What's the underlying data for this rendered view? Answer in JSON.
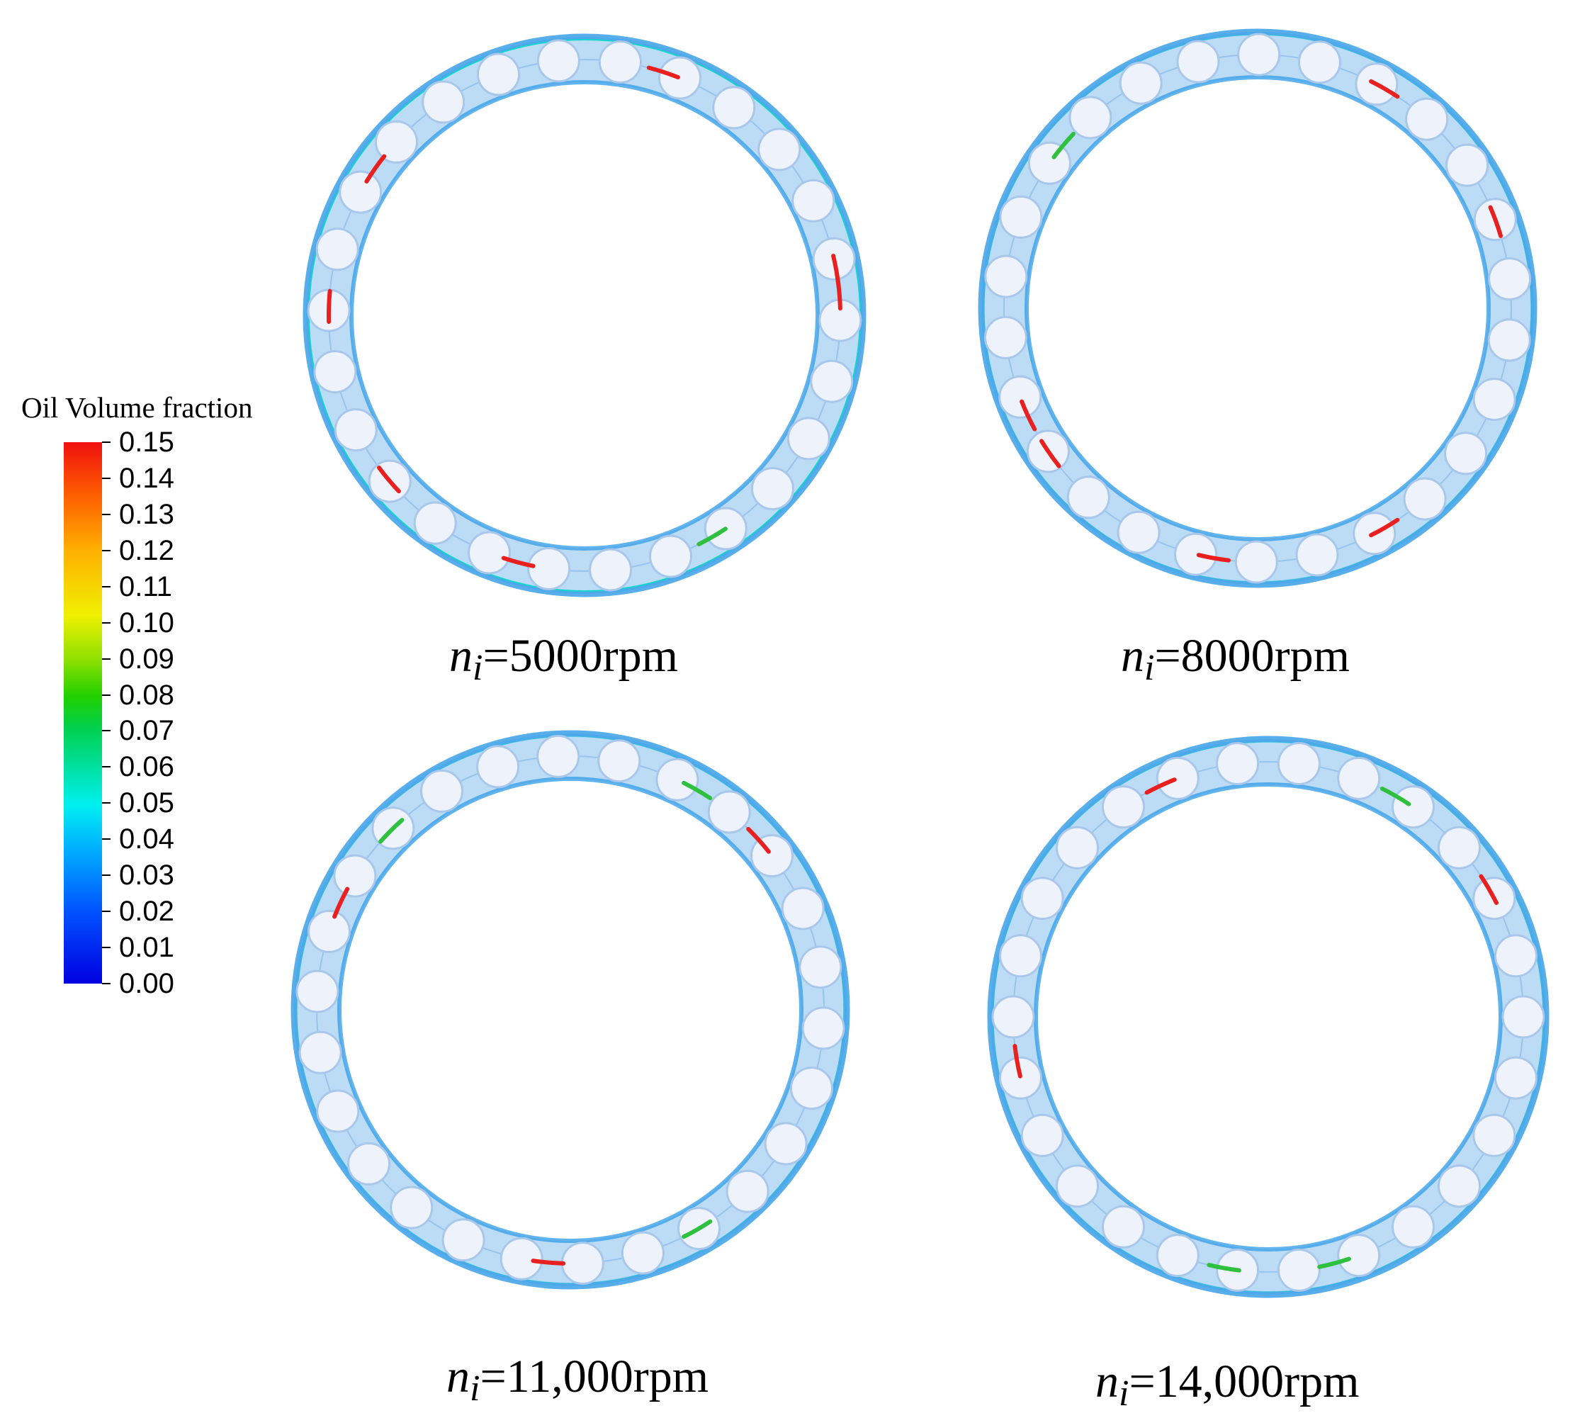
{
  "legend": {
    "title": "Oil Volume fraction",
    "ticks": [
      "0.15",
      "0.14",
      "0.13",
      "0.12",
      "0.11",
      "0.10",
      "0.09",
      "0.08",
      "0.07",
      "0.06",
      "0.05",
      "0.04",
      "0.03",
      "0.02",
      "0.01",
      "0.00"
    ],
    "max": 0.15,
    "min": 0.0
  },
  "panels": [
    {
      "symbol": "n",
      "subscript": "i",
      "value": "=5000rpm",
      "balls": 26
    },
    {
      "symbol": "n",
      "subscript": "i",
      "value": "=8000rpm",
      "balls": 26
    },
    {
      "symbol": "n",
      "subscript": "i",
      "value": "=11,000rpm",
      "balls": 26
    },
    {
      "symbol": "n",
      "subscript": "i",
      "value": "=14,000rpm",
      "balls": 26
    }
  ],
  "colors": {
    "ring": "#3aa0e8",
    "ring_light": "#bcdcf6",
    "ball_fill": "#eef3fb",
    "ball_edge": "#a9c7ea",
    "hotspot_red": "#e82020",
    "hotspot_green": "#30c040",
    "hotspot_cyan": "#10d8c8"
  }
}
